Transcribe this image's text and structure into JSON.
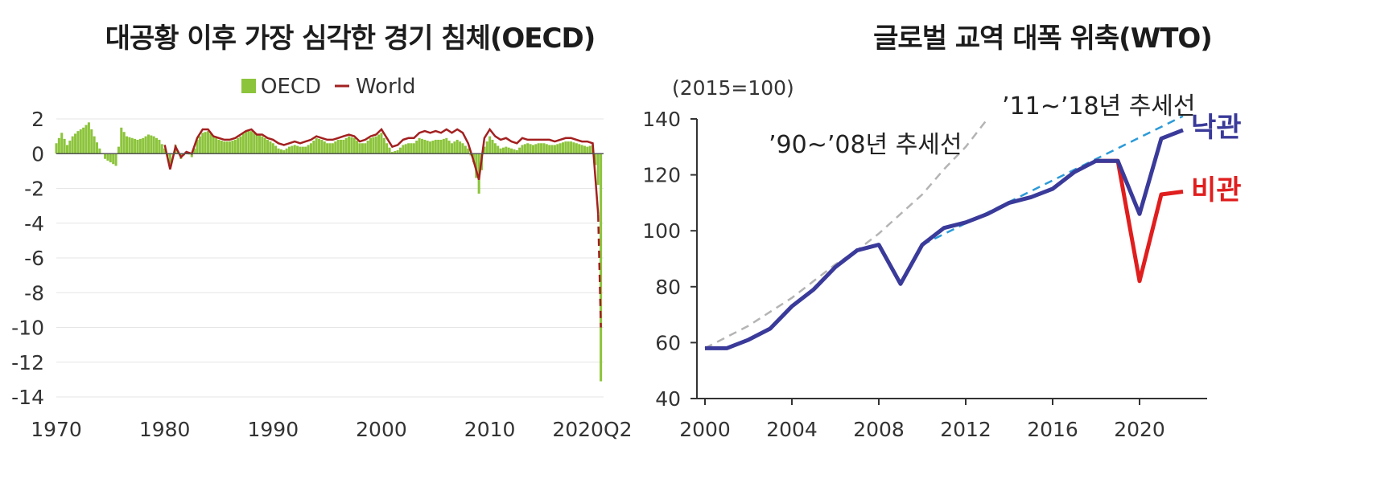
{
  "chart_data": [
    {
      "type": "bar",
      "title": "대공황 이후 가장 심각한 경기 침체(OECD)",
      "xlabel": "",
      "ylabel": "",
      "xlim": [
        1970,
        2020.5
      ],
      "ylim": [
        -14,
        2
      ],
      "yticks": [
        "2",
        "0",
        "-2",
        "-4",
        "-6",
        "-8",
        "-10",
        "-12",
        "-14"
      ],
      "xticks": [
        "1970",
        "1980",
        "1990",
        "2000",
        "2010",
        "2020Q2"
      ],
      "grid": true,
      "legend": "top-center",
      "colors": {
        "oecd": "#8cc43c",
        "world": "#a32020",
        "grid": "#e6e6e6"
      },
      "series": [
        {
          "name": "OECD",
          "kind": "bar",
          "points": [
            [
              1970.0,
              0.6
            ],
            [
              1970.5,
              1.2
            ],
            [
              1971.0,
              0.5
            ],
            [
              1971.5,
              1.0
            ],
            [
              1972.0,
              1.3
            ],
            [
              1972.5,
              1.5
            ],
            [
              1973.0,
              1.8
            ],
            [
              1973.5,
              1.0
            ],
            [
              1974.0,
              0.3
            ],
            [
              1974.5,
              -0.3
            ],
            [
              1975.0,
              -0.5
            ],
            [
              1975.5,
              -0.7
            ],
            [
              1976.0,
              1.5
            ],
            [
              1976.5,
              1.0
            ],
            [
              1977.0,
              0.9
            ],
            [
              1977.5,
              0.8
            ],
            [
              1978.0,
              0.9
            ],
            [
              1978.5,
              1.1
            ],
            [
              1979.0,
              1.0
            ],
            [
              1979.5,
              0.8
            ],
            [
              1980.0,
              0.3
            ],
            [
              1980.5,
              -0.6
            ],
            [
              1981.0,
              0.5
            ],
            [
              1981.5,
              -0.3
            ],
            [
              1982.0,
              0.1
            ],
            [
              1982.5,
              -0.2
            ],
            [
              1983.0,
              0.8
            ],
            [
              1983.5,
              1.2
            ],
            [
              1984.0,
              1.3
            ],
            [
              1984.5,
              1.0
            ],
            [
              1985.0,
              0.8
            ],
            [
              1985.5,
              0.7
            ],
            [
              1986.0,
              0.7
            ],
            [
              1986.5,
              0.8
            ],
            [
              1987.0,
              1.0
            ],
            [
              1987.5,
              1.3
            ],
            [
              1988.0,
              1.3
            ],
            [
              1988.5,
              1.1
            ],
            [
              1989.0,
              1.0
            ],
            [
              1989.5,
              0.8
            ],
            [
              1990.0,
              0.6
            ],
            [
              1990.5,
              0.3
            ],
            [
              1991.0,
              0.2
            ],
            [
              1991.5,
              0.4
            ],
            [
              1992.0,
              0.5
            ],
            [
              1992.5,
              0.4
            ],
            [
              1993.0,
              0.4
            ],
            [
              1993.5,
              0.6
            ],
            [
              1994.0,
              0.9
            ],
            [
              1994.5,
              0.8
            ],
            [
              1995.0,
              0.6
            ],
            [
              1995.5,
              0.6
            ],
            [
              1996.0,
              0.8
            ],
            [
              1996.5,
              0.8
            ],
            [
              1997.0,
              1.0
            ],
            [
              1997.5,
              0.9
            ],
            [
              1998.0,
              0.6
            ],
            [
              1998.5,
              0.6
            ],
            [
              1999.0,
              0.9
            ],
            [
              1999.5,
              1.0
            ],
            [
              2000.0,
              1.2
            ],
            [
              2000.5,
              0.6
            ],
            [
              2001.0,
              0.1
            ],
            [
              2001.5,
              0.2
            ],
            [
              2002.0,
              0.5
            ],
            [
              2002.5,
              0.6
            ],
            [
              2003.0,
              0.6
            ],
            [
              2003.5,
              0.9
            ],
            [
              2004.0,
              0.8
            ],
            [
              2004.5,
              0.7
            ],
            [
              2005.0,
              0.8
            ],
            [
              2005.5,
              0.8
            ],
            [
              2006.0,
              0.9
            ],
            [
              2006.5,
              0.6
            ],
            [
              2007.0,
              0.8
            ],
            [
              2007.5,
              0.6
            ],
            [
              2008.0,
              0.3
            ],
            [
              2008.5,
              -0.5
            ],
            [
              2009.0,
              -2.3
            ],
            [
              2009.5,
              0.4
            ],
            [
              2010.0,
              1.0
            ],
            [
              2010.5,
              0.6
            ],
            [
              2011.0,
              0.3
            ],
            [
              2011.5,
              0.4
            ],
            [
              2012.0,
              0.3
            ],
            [
              2012.5,
              0.2
            ],
            [
              2013.0,
              0.5
            ],
            [
              2013.5,
              0.6
            ],
            [
              2014.0,
              0.5
            ],
            [
              2014.5,
              0.6
            ],
            [
              2015.0,
              0.6
            ],
            [
              2015.5,
              0.5
            ],
            [
              2016.0,
              0.5
            ],
            [
              2016.5,
              0.6
            ],
            [
              2017.0,
              0.7
            ],
            [
              2017.5,
              0.7
            ],
            [
              2018.0,
              0.6
            ],
            [
              2018.5,
              0.5
            ],
            [
              2019.0,
              0.4
            ],
            [
              2019.5,
              0.5
            ],
            [
              2020.0,
              -1.8
            ],
            [
              2020.25,
              -13.1
            ]
          ]
        },
        {
          "name": "World",
          "kind": "line",
          "points": [
            [
              1980.0,
              0.5
            ],
            [
              1980.5,
              -0.9
            ],
            [
              1981.0,
              0.4
            ],
            [
              1981.5,
              -0.2
            ],
            [
              1982.0,
              0.1
            ],
            [
              1982.5,
              0.0
            ],
            [
              1983.0,
              0.9
            ],
            [
              1983.5,
              1.4
            ],
            [
              1984.0,
              1.4
            ],
            [
              1984.5,
              1.0
            ],
            [
              1985.0,
              0.9
            ],
            [
              1985.5,
              0.8
            ],
            [
              1986.0,
              0.8
            ],
            [
              1986.5,
              0.9
            ],
            [
              1987.0,
              1.1
            ],
            [
              1987.5,
              1.3
            ],
            [
              1988.0,
              1.4
            ],
            [
              1988.5,
              1.1
            ],
            [
              1989.0,
              1.1
            ],
            [
              1989.5,
              0.9
            ],
            [
              1990.0,
              0.8
            ],
            [
              1990.5,
              0.6
            ],
            [
              1991.0,
              0.5
            ],
            [
              1991.5,
              0.6
            ],
            [
              1992.0,
              0.7
            ],
            [
              1992.5,
              0.6
            ],
            [
              1993.0,
              0.7
            ],
            [
              1993.5,
              0.8
            ],
            [
              1994.0,
              1.0
            ],
            [
              1994.5,
              0.9
            ],
            [
              1995.0,
              0.8
            ],
            [
              1995.5,
              0.8
            ],
            [
              1996.0,
              0.9
            ],
            [
              1996.5,
              1.0
            ],
            [
              1997.0,
              1.1
            ],
            [
              1997.5,
              1.0
            ],
            [
              1998.0,
              0.7
            ],
            [
              1998.5,
              0.8
            ],
            [
              1999.0,
              1.0
            ],
            [
              1999.5,
              1.1
            ],
            [
              2000.0,
              1.4
            ],
            [
              2000.5,
              0.9
            ],
            [
              2001.0,
              0.4
            ],
            [
              2001.5,
              0.5
            ],
            [
              2002.0,
              0.8
            ],
            [
              2002.5,
              0.9
            ],
            [
              2003.0,
              0.9
            ],
            [
              2003.5,
              1.2
            ],
            [
              2004.0,
              1.3
            ],
            [
              2004.5,
              1.2
            ],
            [
              2005.0,
              1.3
            ],
            [
              2005.5,
              1.2
            ],
            [
              2006.0,
              1.4
            ],
            [
              2006.5,
              1.2
            ],
            [
              2007.0,
              1.4
            ],
            [
              2007.5,
              1.2
            ],
            [
              2008.0,
              0.6
            ],
            [
              2008.5,
              -0.4
            ],
            [
              2009.0,
              -1.5
            ],
            [
              2009.5,
              0.9
            ],
            [
              2010.0,
              1.4
            ],
            [
              2010.5,
              1.0
            ],
            [
              2011.0,
              0.8
            ],
            [
              2011.5,
              0.9
            ],
            [
              2012.0,
              0.7
            ],
            [
              2012.5,
              0.6
            ],
            [
              2013.0,
              0.9
            ],
            [
              2013.5,
              0.8
            ],
            [
              2014.0,
              0.8
            ],
            [
              2014.5,
              0.8
            ],
            [
              2015.0,
              0.8
            ],
            [
              2015.5,
              0.8
            ],
            [
              2016.0,
              0.7
            ],
            [
              2016.5,
              0.8
            ],
            [
              2017.0,
              0.9
            ],
            [
              2017.5,
              0.9
            ],
            [
              2018.0,
              0.8
            ],
            [
              2018.5,
              0.7
            ],
            [
              2019.0,
              0.7
            ],
            [
              2019.5,
              0.6
            ],
            [
              2020.0,
              -3.5
            ],
            [
              2020.25,
              -10.0
            ]
          ]
        }
      ]
    },
    {
      "type": "line",
      "title": "글로벌 교역 대폭 위축(WTO)",
      "subtitle": "(2015=100)",
      "xlabel": "",
      "ylabel": "",
      "xlim": [
        2000,
        2022
      ],
      "ylim": [
        40,
        140
      ],
      "yticks": [
        "140",
        "120",
        "100",
        "80",
        "60",
        "40"
      ],
      "xticks": [
        "2000",
        "2004",
        "2008",
        "2012",
        "2016",
        "2020"
      ],
      "grid": false,
      "colors": {
        "optimistic": "#3a3a9a",
        "pessimistic": "#e01e1e",
        "trend_90_08": "#b4b4b4",
        "trend_11_18": "#2c9ad8"
      },
      "annotations": [
        "’90~’08년 추세선",
        "’11~’18년 추세선"
      ],
      "series": [
        {
          "name": "낙관",
          "kind": "line",
          "x": [
            2000,
            2001,
            2002,
            2003,
            2004,
            2005,
            2006,
            2007,
            2008,
            2009,
            2010,
            2011,
            2012,
            2013,
            2014,
            2015,
            2016,
            2017,
            2018,
            2019,
            2020,
            2021,
            2022
          ],
          "y": [
            58,
            58,
            61,
            65,
            73,
            79,
            87,
            93,
            95,
            81,
            95,
            101,
            103,
            106,
            110,
            112,
            115,
            121,
            125,
            125,
            106,
            133,
            136
          ]
        },
        {
          "name": "비관",
          "kind": "line",
          "x": [
            2018,
            2019,
            2020,
            2021,
            2022
          ],
          "y": [
            125,
            125,
            82,
            113,
            114
          ]
        },
        {
          "name": "’90~’08년 추세선",
          "kind": "dashed",
          "x": [
            2000,
            2001,
            2002,
            2003,
            2004,
            2005,
            2006,
            2007,
            2008,
            2009,
            2010,
            2011,
            2012,
            2013
          ],
          "y": [
            58,
            62,
            66,
            71,
            76,
            82,
            88,
            93,
            99,
            106,
            113,
            122,
            130,
            140
          ]
        },
        {
          "name": "’11~’18년 추세선",
          "kind": "dashed",
          "x": [
            2010,
            2022
          ],
          "y": [
            95,
            141
          ]
        }
      ]
    }
  ]
}
